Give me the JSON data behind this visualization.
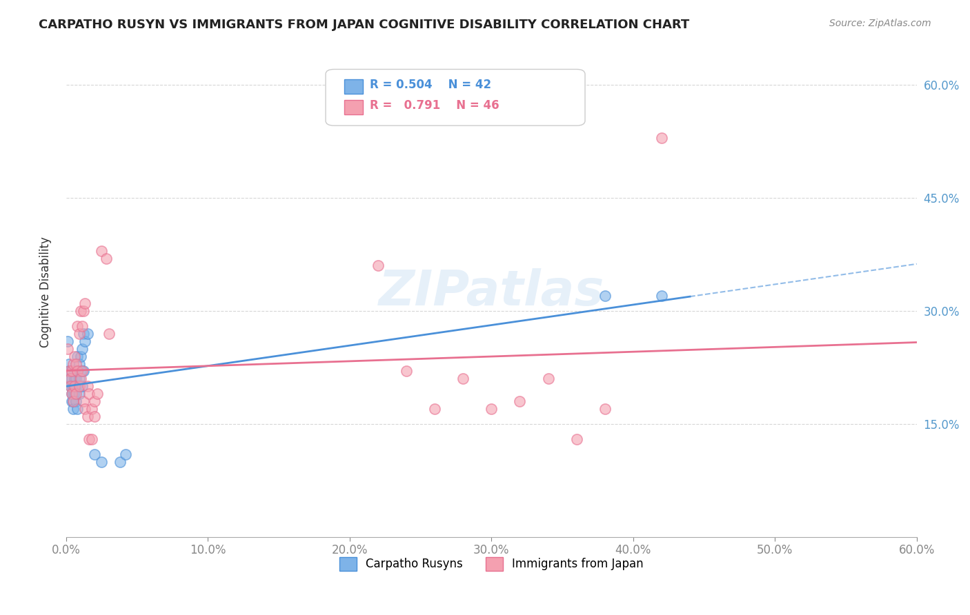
{
  "title": "CARPATHO RUSYN VS IMMIGRANTS FROM JAPAN COGNITIVE DISABILITY CORRELATION CHART",
  "source": "Source: ZipAtlas.com",
  "xlabel_ticks": [
    "0.0%",
    "10.0%",
    "20.0%",
    "30.0%",
    "40.0%",
    "50.0%",
    "60.0%"
  ],
  "ylabel_ticks": [
    "15.0%",
    "30.0%",
    "45.0%",
    "60.0%"
  ],
  "ylabel_label": "Cognitive Disability",
  "legend_bottom": [
    "Carpatho Rusyns",
    "Immigrants from Japan"
  ],
  "blue_R": "0.504",
  "blue_N": "42",
  "pink_R": "0.791",
  "pink_N": "46",
  "xlim": [
    0.0,
    0.6
  ],
  "ylim": [
    0.0,
    0.65
  ],
  "blue_color": "#7EB3E8",
  "pink_color": "#F4A0B0",
  "blue_line_color": "#4A90D9",
  "pink_line_color": "#E87090",
  "watermark": "ZIPatlas",
  "blue_scatter_x": [
    0.001,
    0.002,
    0.002,
    0.003,
    0.003,
    0.003,
    0.004,
    0.004,
    0.004,
    0.004,
    0.005,
    0.005,
    0.005,
    0.005,
    0.005,
    0.006,
    0.006,
    0.006,
    0.006,
    0.007,
    0.007,
    0.007,
    0.008,
    0.008,
    0.008,
    0.009,
    0.009,
    0.009,
    0.01,
    0.01,
    0.011,
    0.011,
    0.012,
    0.012,
    0.013,
    0.015,
    0.02,
    0.025,
    0.038,
    0.042,
    0.38,
    0.42
  ],
  "blue_scatter_y": [
    0.26,
    0.23,
    0.22,
    0.22,
    0.21,
    0.2,
    0.21,
    0.2,
    0.19,
    0.18,
    0.2,
    0.2,
    0.19,
    0.18,
    0.17,
    0.22,
    0.21,
    0.2,
    0.19,
    0.21,
    0.2,
    0.18,
    0.24,
    0.22,
    0.17,
    0.23,
    0.21,
    0.19,
    0.24,
    0.22,
    0.25,
    0.2,
    0.27,
    0.22,
    0.26,
    0.27,
    0.11,
    0.1,
    0.1,
    0.11,
    0.32,
    0.32
  ],
  "pink_scatter_x": [
    0.001,
    0.002,
    0.003,
    0.003,
    0.004,
    0.004,
    0.005,
    0.005,
    0.006,
    0.006,
    0.007,
    0.007,
    0.008,
    0.008,
    0.009,
    0.009,
    0.01,
    0.01,
    0.011,
    0.011,
    0.012,
    0.012,
    0.013,
    0.013,
    0.015,
    0.015,
    0.016,
    0.016,
    0.018,
    0.018,
    0.02,
    0.02,
    0.022,
    0.025,
    0.028,
    0.03,
    0.22,
    0.24,
    0.26,
    0.28,
    0.3,
    0.32,
    0.34,
    0.36,
    0.42,
    0.38
  ],
  "pink_scatter_y": [
    0.25,
    0.22,
    0.21,
    0.2,
    0.22,
    0.19,
    0.23,
    0.18,
    0.24,
    0.2,
    0.23,
    0.19,
    0.28,
    0.22,
    0.27,
    0.2,
    0.3,
    0.21,
    0.28,
    0.22,
    0.3,
    0.18,
    0.31,
    0.17,
    0.2,
    0.16,
    0.13,
    0.19,
    0.13,
    0.17,
    0.18,
    0.16,
    0.19,
    0.38,
    0.37,
    0.27,
    0.36,
    0.22,
    0.17,
    0.21,
    0.17,
    0.18,
    0.21,
    0.13,
    0.53,
    0.17
  ]
}
